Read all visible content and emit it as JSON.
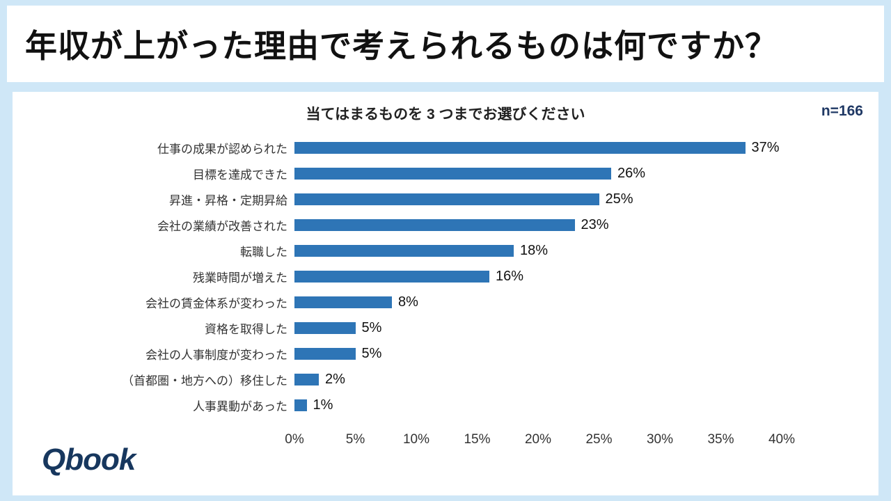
{
  "page": {
    "title": "年収が上がった理由で考えられるものは何ですか？",
    "subtitle": "当てはまるものを 3 つまでお選びください",
    "sample_size": "n=166",
    "logo_text": "Qbook"
  },
  "colors": {
    "background": "#cfe7f7",
    "panel": "#ffffff",
    "bar": "#2e75b6",
    "navy": "#1f3864"
  },
  "chart_data": {
    "type": "bar",
    "orientation": "horizontal",
    "title": "当てはまるものを 3 つまでお選びください",
    "sample_size": "n=166",
    "categories": [
      "仕事の成果が認められた",
      "目標を達成できた",
      "昇進・昇格・定期昇給",
      "会社の業績が改善された",
      "転職した",
      "残業時間が増えた",
      "会社の賃金体系が変わった",
      "資格を取得した",
      "会社の人事制度が変わった",
      "（首都圏・地方への）移住した",
      "人事異動があった"
    ],
    "values": [
      37,
      26,
      25,
      23,
      18,
      16,
      8,
      5,
      5,
      2,
      1
    ],
    "value_labels": [
      "37%",
      "26%",
      "25%",
      "23%",
      "18%",
      "16%",
      "8%",
      "5%",
      "5%",
      "2%",
      "1%"
    ],
    "xlim": [
      0,
      40
    ],
    "x_ticks": [
      "0%",
      "5%",
      "10%",
      "15%",
      "20%",
      "25%",
      "30%",
      "35%",
      "40%"
    ],
    "xlabel": "",
    "ylabel": "",
    "grid": false,
    "legend": false
  }
}
